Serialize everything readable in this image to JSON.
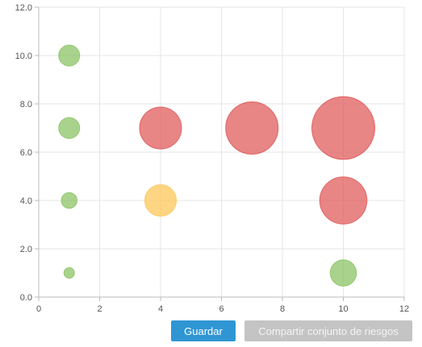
{
  "chart_data": {
    "type": "scatter",
    "title": "",
    "xlabel": "",
    "ylabel": "",
    "xlim": [
      0,
      12
    ],
    "ylim": [
      0,
      12
    ],
    "x_ticks": [
      "0",
      "2",
      "4",
      "6",
      "8",
      "10",
      "12"
    ],
    "y_ticks": [
      "0.0",
      "2.0",
      "4.0",
      "6.0",
      "8.0",
      "10.0",
      "12.0"
    ],
    "grid": true,
    "legend": "none",
    "points": [
      {
        "x": 1,
        "y": 10,
        "size": 2,
        "color": "#8cc466"
      },
      {
        "x": 1,
        "y": 7,
        "size": 2,
        "color": "#8cc466"
      },
      {
        "x": 1,
        "y": 4,
        "size": 1.5,
        "color": "#8cc466"
      },
      {
        "x": 1,
        "y": 1,
        "size": 1,
        "color": "#8cc466"
      },
      {
        "x": 4,
        "y": 7,
        "size": 4,
        "color": "#e05c5c"
      },
      {
        "x": 4,
        "y": 4,
        "size": 3,
        "color": "#fdc758"
      },
      {
        "x": 7,
        "y": 7,
        "size": 5,
        "color": "#e05c5c"
      },
      {
        "x": 10,
        "y": 7,
        "size": 6,
        "color": "#e05c5c"
      },
      {
        "x": 10,
        "y": 4,
        "size": 4.5,
        "color": "#e05c5c"
      },
      {
        "x": 10,
        "y": 1,
        "size": 2.5,
        "color": "#8cc466"
      }
    ]
  },
  "buttons": {
    "save_label": "Guardar",
    "share_label": "Compartir conjunto de riesgos"
  },
  "colors": {
    "save_button": "#2f96d4",
    "share_button_disabled": "#c4c4c4",
    "gridline": "#e6e6e6",
    "axis": "#bbbbbb"
  }
}
